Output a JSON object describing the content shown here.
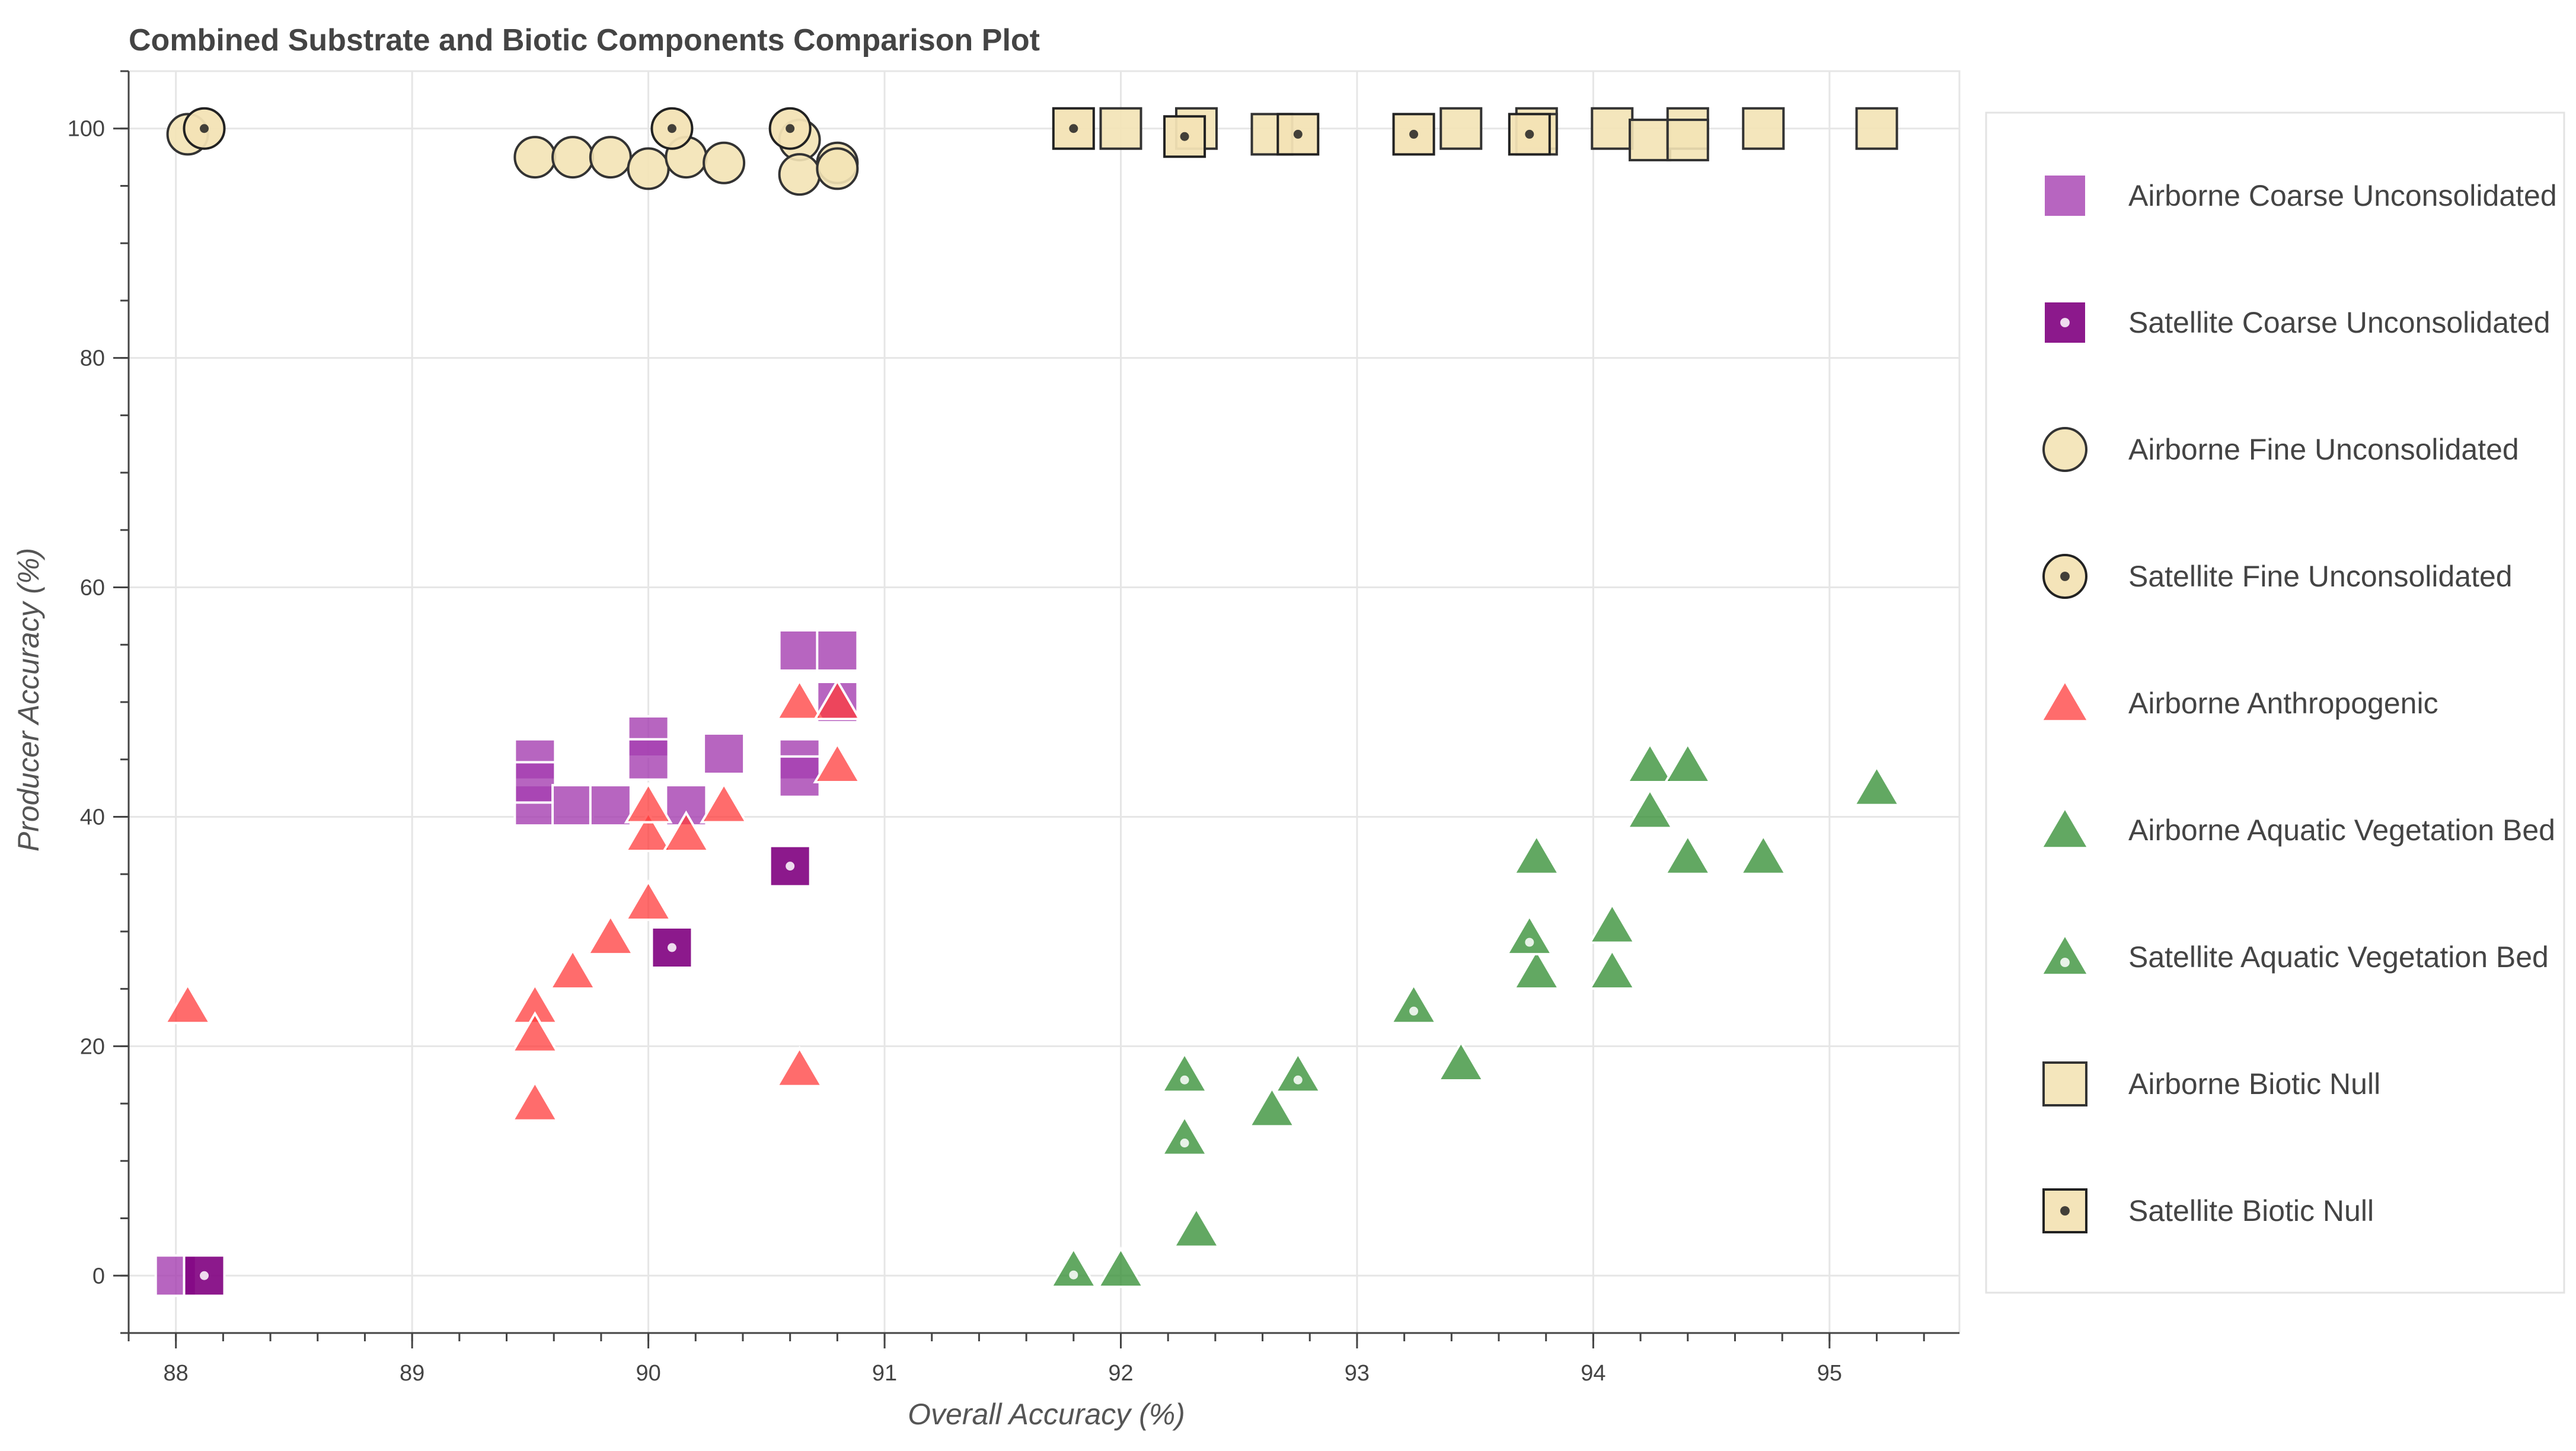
{
  "chart_data": {
    "type": "scatter",
    "title": "Combined Substrate and Biotic Components Comparison Plot",
    "xlabel": "Overall Accuracy (%)",
    "ylabel": "Producer Accuracy (%)",
    "xlim": [
      87.8,
      95.55
    ],
    "ylim": [
      -5,
      105
    ],
    "xticks": [
      "88",
      "89",
      "90",
      "91",
      "92",
      "93",
      "94",
      "95"
    ],
    "yticks": [
      "0",
      "20",
      "40",
      "60",
      "80",
      "100"
    ],
    "grid": true,
    "legend_position": "right",
    "series": [
      {
        "name": "Airborne Coarse Unconsolidated",
        "marker": "square",
        "dot": false,
        "fill": "#a53fb0",
        "opacity": 0.8,
        "stroke": "#ffffff",
        "points": [
          [
            88.0,
            0
          ],
          [
            89.52,
            45
          ],
          [
            89.52,
            41
          ],
          [
            89.52,
            43
          ],
          [
            89.68,
            41
          ],
          [
            89.84,
            41
          ],
          [
            90.0,
            47
          ],
          [
            90.0,
            45
          ],
          [
            90.16,
            41
          ],
          [
            90.32,
            45.5
          ],
          [
            90.64,
            54.5
          ],
          [
            90.8,
            54.5
          ],
          [
            90.64,
            45
          ],
          [
            90.64,
            43.5
          ],
          [
            90.8,
            50
          ]
        ]
      },
      {
        "name": "Satellite Coarse Unconsolidated",
        "marker": "square",
        "dot": true,
        "fill": "#800080",
        "opacity": 0.9,
        "stroke": "#ffffff",
        "points": [
          [
            88.12,
            0
          ],
          [
            90.6,
            35.7
          ],
          [
            90.1,
            28.6
          ]
        ]
      },
      {
        "name": "Airborne Fine Unconsolidated",
        "marker": "circle",
        "dot": false,
        "fill": "#f3e3b5",
        "opacity": 0.9,
        "stroke": "#333333",
        "points": [
          [
            88.05,
            99.5
          ],
          [
            89.52,
            97.5
          ],
          [
            89.68,
            97.5
          ],
          [
            89.84,
            97.5
          ],
          [
            90.0,
            96.5
          ],
          [
            90.16,
            97.5
          ],
          [
            90.32,
            97
          ],
          [
            90.64,
            99
          ],
          [
            90.64,
            96
          ],
          [
            90.8,
            97
          ],
          [
            90.8,
            96.5
          ]
        ]
      },
      {
        "name": "Satellite Fine Unconsolidated",
        "marker": "circle",
        "dot": true,
        "fill": "#f3e3b5",
        "opacity": 0.95,
        "stroke": "#222222",
        "points": [
          [
            88.12,
            100
          ],
          [
            90.1,
            100
          ],
          [
            90.6,
            100
          ]
        ]
      },
      {
        "name": "Airborne Anthropogenic",
        "marker": "triangle",
        "dot": false,
        "fill": "#ff3b3b",
        "opacity": 0.75,
        "stroke": "#ffffff",
        "points": [
          [
            88.05,
            23.5
          ],
          [
            89.52,
            23.5
          ],
          [
            89.52,
            21
          ],
          [
            89.52,
            15
          ],
          [
            89.68,
            26.5
          ],
          [
            89.84,
            29.5
          ],
          [
            90.0,
            32.5
          ],
          [
            90.0,
            38.5
          ],
          [
            90.0,
            41
          ],
          [
            90.16,
            38.5
          ],
          [
            90.32,
            41
          ],
          [
            90.64,
            50
          ],
          [
            90.8,
            50
          ],
          [
            90.8,
            44.5
          ],
          [
            90.64,
            18
          ]
        ]
      },
      {
        "name": "Airborne Aquatic Vegetation Bed",
        "marker": "triangle",
        "dot": false,
        "fill": "#2e8b2e",
        "opacity": 0.75,
        "stroke": "#ffffff",
        "points": [
          [
            92.0,
            0.5
          ],
          [
            92.32,
            4
          ],
          [
            92.64,
            14.5
          ],
          [
            93.44,
            18.5
          ],
          [
            93.76,
            36.5
          ],
          [
            93.76,
            26.5
          ],
          [
            94.08,
            30.5
          ],
          [
            94.08,
            26.5
          ],
          [
            94.24,
            44.5
          ],
          [
            94.4,
            44.5
          ],
          [
            94.24,
            40.5
          ],
          [
            94.4,
            36.5
          ],
          [
            94.72,
            36.5
          ],
          [
            95.2,
            42.5
          ]
        ]
      },
      {
        "name": "Satellite Aquatic Vegetation Bed",
        "marker": "triangle",
        "dot": true,
        "fill": "#2e8b2e",
        "opacity": 0.75,
        "stroke": "#ffffff",
        "points": [
          [
            91.8,
            0.5
          ],
          [
            92.27,
            17.5
          ],
          [
            92.27,
            12
          ],
          [
            92.75,
            17.5
          ],
          [
            93.24,
            23.5
          ],
          [
            93.73,
            29.5
          ]
        ]
      },
      {
        "name": "Airborne Biotic Null",
        "marker": "square",
        "dot": false,
        "fill": "#f3e3b5",
        "opacity": 0.9,
        "stroke": "#333333",
        "points": [
          [
            92.0,
            100
          ],
          [
            92.32,
            100
          ],
          [
            92.64,
            99.5
          ],
          [
            93.44,
            100
          ],
          [
            93.76,
            100
          ],
          [
            93.76,
            99.5
          ],
          [
            94.08,
            100
          ],
          [
            94.24,
            99
          ],
          [
            94.4,
            100
          ],
          [
            94.4,
            99
          ],
          [
            94.72,
            100
          ],
          [
            95.2,
            100
          ]
        ]
      },
      {
        "name": "Satellite Biotic Null",
        "marker": "square",
        "dot": true,
        "fill": "#f3e3b5",
        "opacity": 0.95,
        "stroke": "#222222",
        "points": [
          [
            91.8,
            100
          ],
          [
            92.27,
            99.3
          ],
          [
            92.75,
            99.5
          ],
          [
            93.24,
            99.5
          ],
          [
            93.73,
            99.5
          ]
        ]
      }
    ]
  }
}
